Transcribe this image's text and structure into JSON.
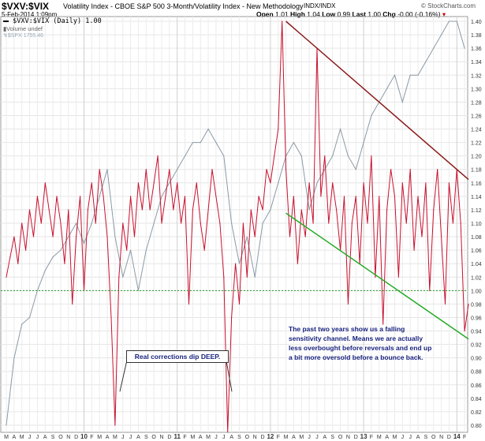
{
  "header": {
    "symbol": "$VXV:$VIX",
    "description": "Volatility Index - CBOE S&P 500 3-Month/Volatility Index - New Methodology",
    "exchange": "INDX/INDX",
    "date": "5-Feb-2014 1:09pm",
    "brand": "© StockCharts.com",
    "open_label": "Open",
    "open": "1.01",
    "high_label": "High",
    "high": "1.04",
    "low_label": "Low",
    "low": "0.99",
    "last_label": "Last",
    "last": "1.00",
    "chg_label": "Chg",
    "chg": "-0.00 (-0.16%)"
  },
  "legend": {
    "main": "$VXV:$VIX (Daily) 1.00",
    "volume": "Volume undef",
    "overlay": "$SPX 1755.46"
  },
  "colors": {
    "ratio": "#c8102e",
    "spx": "#8a9aa6",
    "resistance": "#8b1a1a",
    "support": "#22aa22",
    "baseline": "#229922",
    "annotation": "#1a237e"
  },
  "annotations": {
    "corrections": "Real corrections dip DEEP.",
    "channel": "The past two years show us a falling sensitivity channel. Means we are actually less overbought before reversals and end up a bit more oversold before a bounce back."
  },
  "chart_data": {
    "type": "line",
    "title": "$VXV:$VIX",
    "ylim": [
      0.79,
      1.41
    ],
    "yticks": [
      0.8,
      0.82,
      0.84,
      0.86,
      0.88,
      0.9,
      0.92,
      0.94,
      0.96,
      0.98,
      1.0,
      1.02,
      1.04,
      1.06,
      1.08,
      1.1,
      1.12,
      1.14,
      1.16,
      1.18,
      1.2,
      1.22,
      1.24,
      1.26,
      1.28,
      1.3,
      1.32,
      1.34,
      1.36,
      1.38,
      1.4
    ],
    "x_unit": "months since Mar 2009",
    "xticks": [
      "M",
      "A",
      "M",
      "J",
      "J",
      "A",
      "S",
      "O",
      "N",
      "D",
      "10",
      "F",
      "M",
      "A",
      "M",
      "J",
      "J",
      "A",
      "S",
      "O",
      "N",
      "D",
      "11",
      "F",
      "M",
      "A",
      "M",
      "J",
      "J",
      "A",
      "S",
      "O",
      "N",
      "D",
      "12",
      "F",
      "M",
      "A",
      "M",
      "J",
      "J",
      "A",
      "S",
      "O",
      "N",
      "D",
      "13",
      "F",
      "M",
      "A",
      "M",
      "J",
      "J",
      "A",
      "S",
      "O",
      "N",
      "D",
      "14",
      "F"
    ],
    "series": [
      {
        "name": "$VXV:$VIX",
        "step": 0.5,
        "values": [
          1.02,
          1.05,
          1.08,
          1.04,
          1.1,
          1.06,
          1.12,
          1.08,
          1.14,
          1.1,
          1.16,
          1.12,
          1.08,
          1.14,
          1.1,
          1.04,
          1.12,
          0.98,
          1.08,
          1.14,
          1.0,
          1.12,
          1.16,
          1.1,
          1.18,
          1.14,
          1.08,
          0.96,
          0.8,
          1.02,
          1.1,
          1.06,
          1.14,
          1.08,
          1.16,
          1.12,
          1.18,
          1.12,
          1.16,
          1.2,
          1.1,
          1.14,
          1.18,
          1.12,
          1.16,
          1.1,
          1.14,
          0.98,
          1.12,
          1.16,
          1.1,
          1.06,
          1.12,
          1.18,
          1.14,
          1.1,
          1.02,
          0.79,
          0.96,
          1.04,
          0.98,
          1.1,
          1.02,
          1.12,
          1.08,
          1.14,
          1.12,
          1.18,
          1.16,
          1.2,
          1.24,
          1.4,
          1.18,
          1.08,
          1.14,
          1.04,
          1.12,
          1.08,
          1.16,
          1.1,
          1.36,
          1.14,
          1.2,
          1.1,
          1.16,
          1.12,
          1.06,
          1.14,
          0.98,
          1.1,
          1.14,
          1.04,
          1.16,
          1.1,
          1.2,
          1.02,
          1.14,
          0.95,
          1.12,
          1.18,
          1.14,
          1.02,
          1.16,
          1.1,
          1.18,
          1.06,
          1.14,
          1.08,
          1.16,
          1.0,
          1.12,
          1.18,
          1.08,
          0.98,
          1.16,
          1.1,
          1.18,
          1.1,
          0.94,
          0.98
        ]
      },
      {
        "name": "$SPX",
        "step": 1,
        "values": [
          0.8,
          0.9,
          0.95,
          0.96,
          1.0,
          1.03,
          1.05,
          1.06,
          1.08,
          1.1,
          1.07,
          1.1,
          1.14,
          1.18,
          1.08,
          1.02,
          1.06,
          1.0,
          1.06,
          1.1,
          1.14,
          1.16,
          1.18,
          1.2,
          1.22,
          1.22,
          1.24,
          1.22,
          1.2,
          1.1,
          1.04,
          1.08,
          1.02,
          1.1,
          1.12,
          1.16,
          1.2,
          1.22,
          1.2,
          1.12,
          1.16,
          1.18,
          1.2,
          1.24,
          1.2,
          1.18,
          1.22,
          1.26,
          1.28,
          1.3,
          1.32,
          1.28,
          1.32,
          1.32,
          1.34,
          1.36,
          1.38,
          1.4,
          1.4,
          1.36
        ]
      }
    ],
    "trendlines": [
      {
        "name": "resistance",
        "from": [
          36,
          1.4
        ],
        "to": [
          59.5,
          1.165
        ]
      },
      {
        "name": "support",
        "from": [
          36,
          1.115
        ],
        "to": [
          59.5,
          0.928
        ]
      },
      {
        "name": "baseline",
        "y": 1.0
      }
    ]
  }
}
